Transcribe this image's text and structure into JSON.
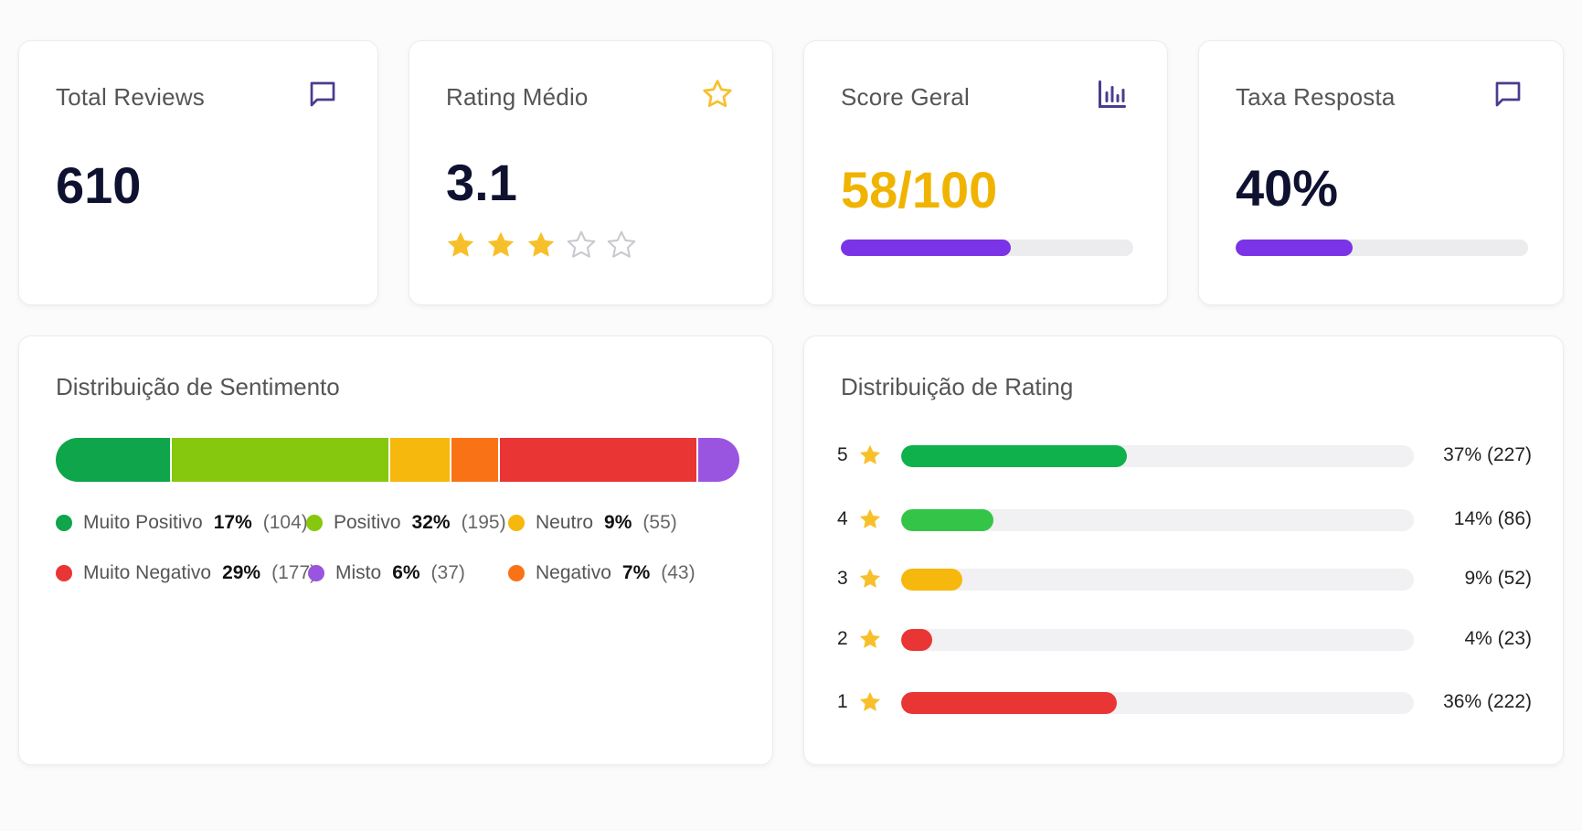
{
  "kpis": {
    "total_reviews": {
      "label": "Total Reviews",
      "value": "610",
      "icon": "chat-icon"
    },
    "rating_medio": {
      "label": "Rating Médio",
      "value": "3.1",
      "icon": "star-icon",
      "stars_filled": 3,
      "stars_total": 5
    },
    "score_geral": {
      "label": "Score Geral",
      "value": "58/100",
      "icon": "bar-chart-icon",
      "progress": 0.58,
      "value_color": "#f0b400"
    },
    "taxa_resposta": {
      "label": "Taxa Resposta",
      "value": "40%",
      "icon": "chat-icon",
      "progress": 0.4
    }
  },
  "colors": {
    "accent_purple": "#7a33e6",
    "icon_purple": "#4b3c8f",
    "star_yellow": "#f7c02b",
    "muito_positivo": "#0fa54a",
    "positivo": "#86c80d",
    "neutro": "#f6b80c",
    "negativo": "#f97316",
    "muito_negativo": "#ea3535",
    "misto": "#9a55e0"
  },
  "sentiment": {
    "title": "Distribuição de Sentimento",
    "segments": [
      {
        "name": "Muito Positivo",
        "pct": "17%",
        "count": "(104)",
        "value": 104,
        "color": "#0fa54a"
      },
      {
        "name": "Positivo",
        "pct": "32%",
        "count": "(195)",
        "value": 195,
        "color": "#86c80d"
      },
      {
        "name": "Neutro",
        "pct": "9%",
        "count": "(55)",
        "value": 55,
        "color": "#f6b80c"
      },
      {
        "name": "Negativo",
        "pct": "7%",
        "count": "(43)",
        "value": 43,
        "color": "#f97316"
      },
      {
        "name": "Muito Negativo",
        "pct": "29%",
        "count": "(177)",
        "value": 177,
        "color": "#ea3535"
      },
      {
        "name": "Misto",
        "pct": "6%",
        "count": "(37)",
        "value": 37,
        "color": "#9a55e0"
      }
    ]
  },
  "rating_dist": {
    "title": "Distribuição de Rating",
    "rows": [
      {
        "stars": "5",
        "text": "37% (227)",
        "fraction": 0.44,
        "color": "#0fb14c"
      },
      {
        "stars": "4",
        "text": "14% (86)",
        "fraction": 0.18,
        "color": "#34c548"
      },
      {
        "stars": "3",
        "text": "9% (52)",
        "fraction": 0.12,
        "color": "#f6b80c"
      },
      {
        "stars": "2",
        "text": "4% (23)",
        "fraction": 0.06,
        "color": "#ea3535"
      },
      {
        "stars": "1",
        "text": "36% (222)",
        "fraction": 0.42,
        "color": "#ea3535"
      }
    ]
  }
}
